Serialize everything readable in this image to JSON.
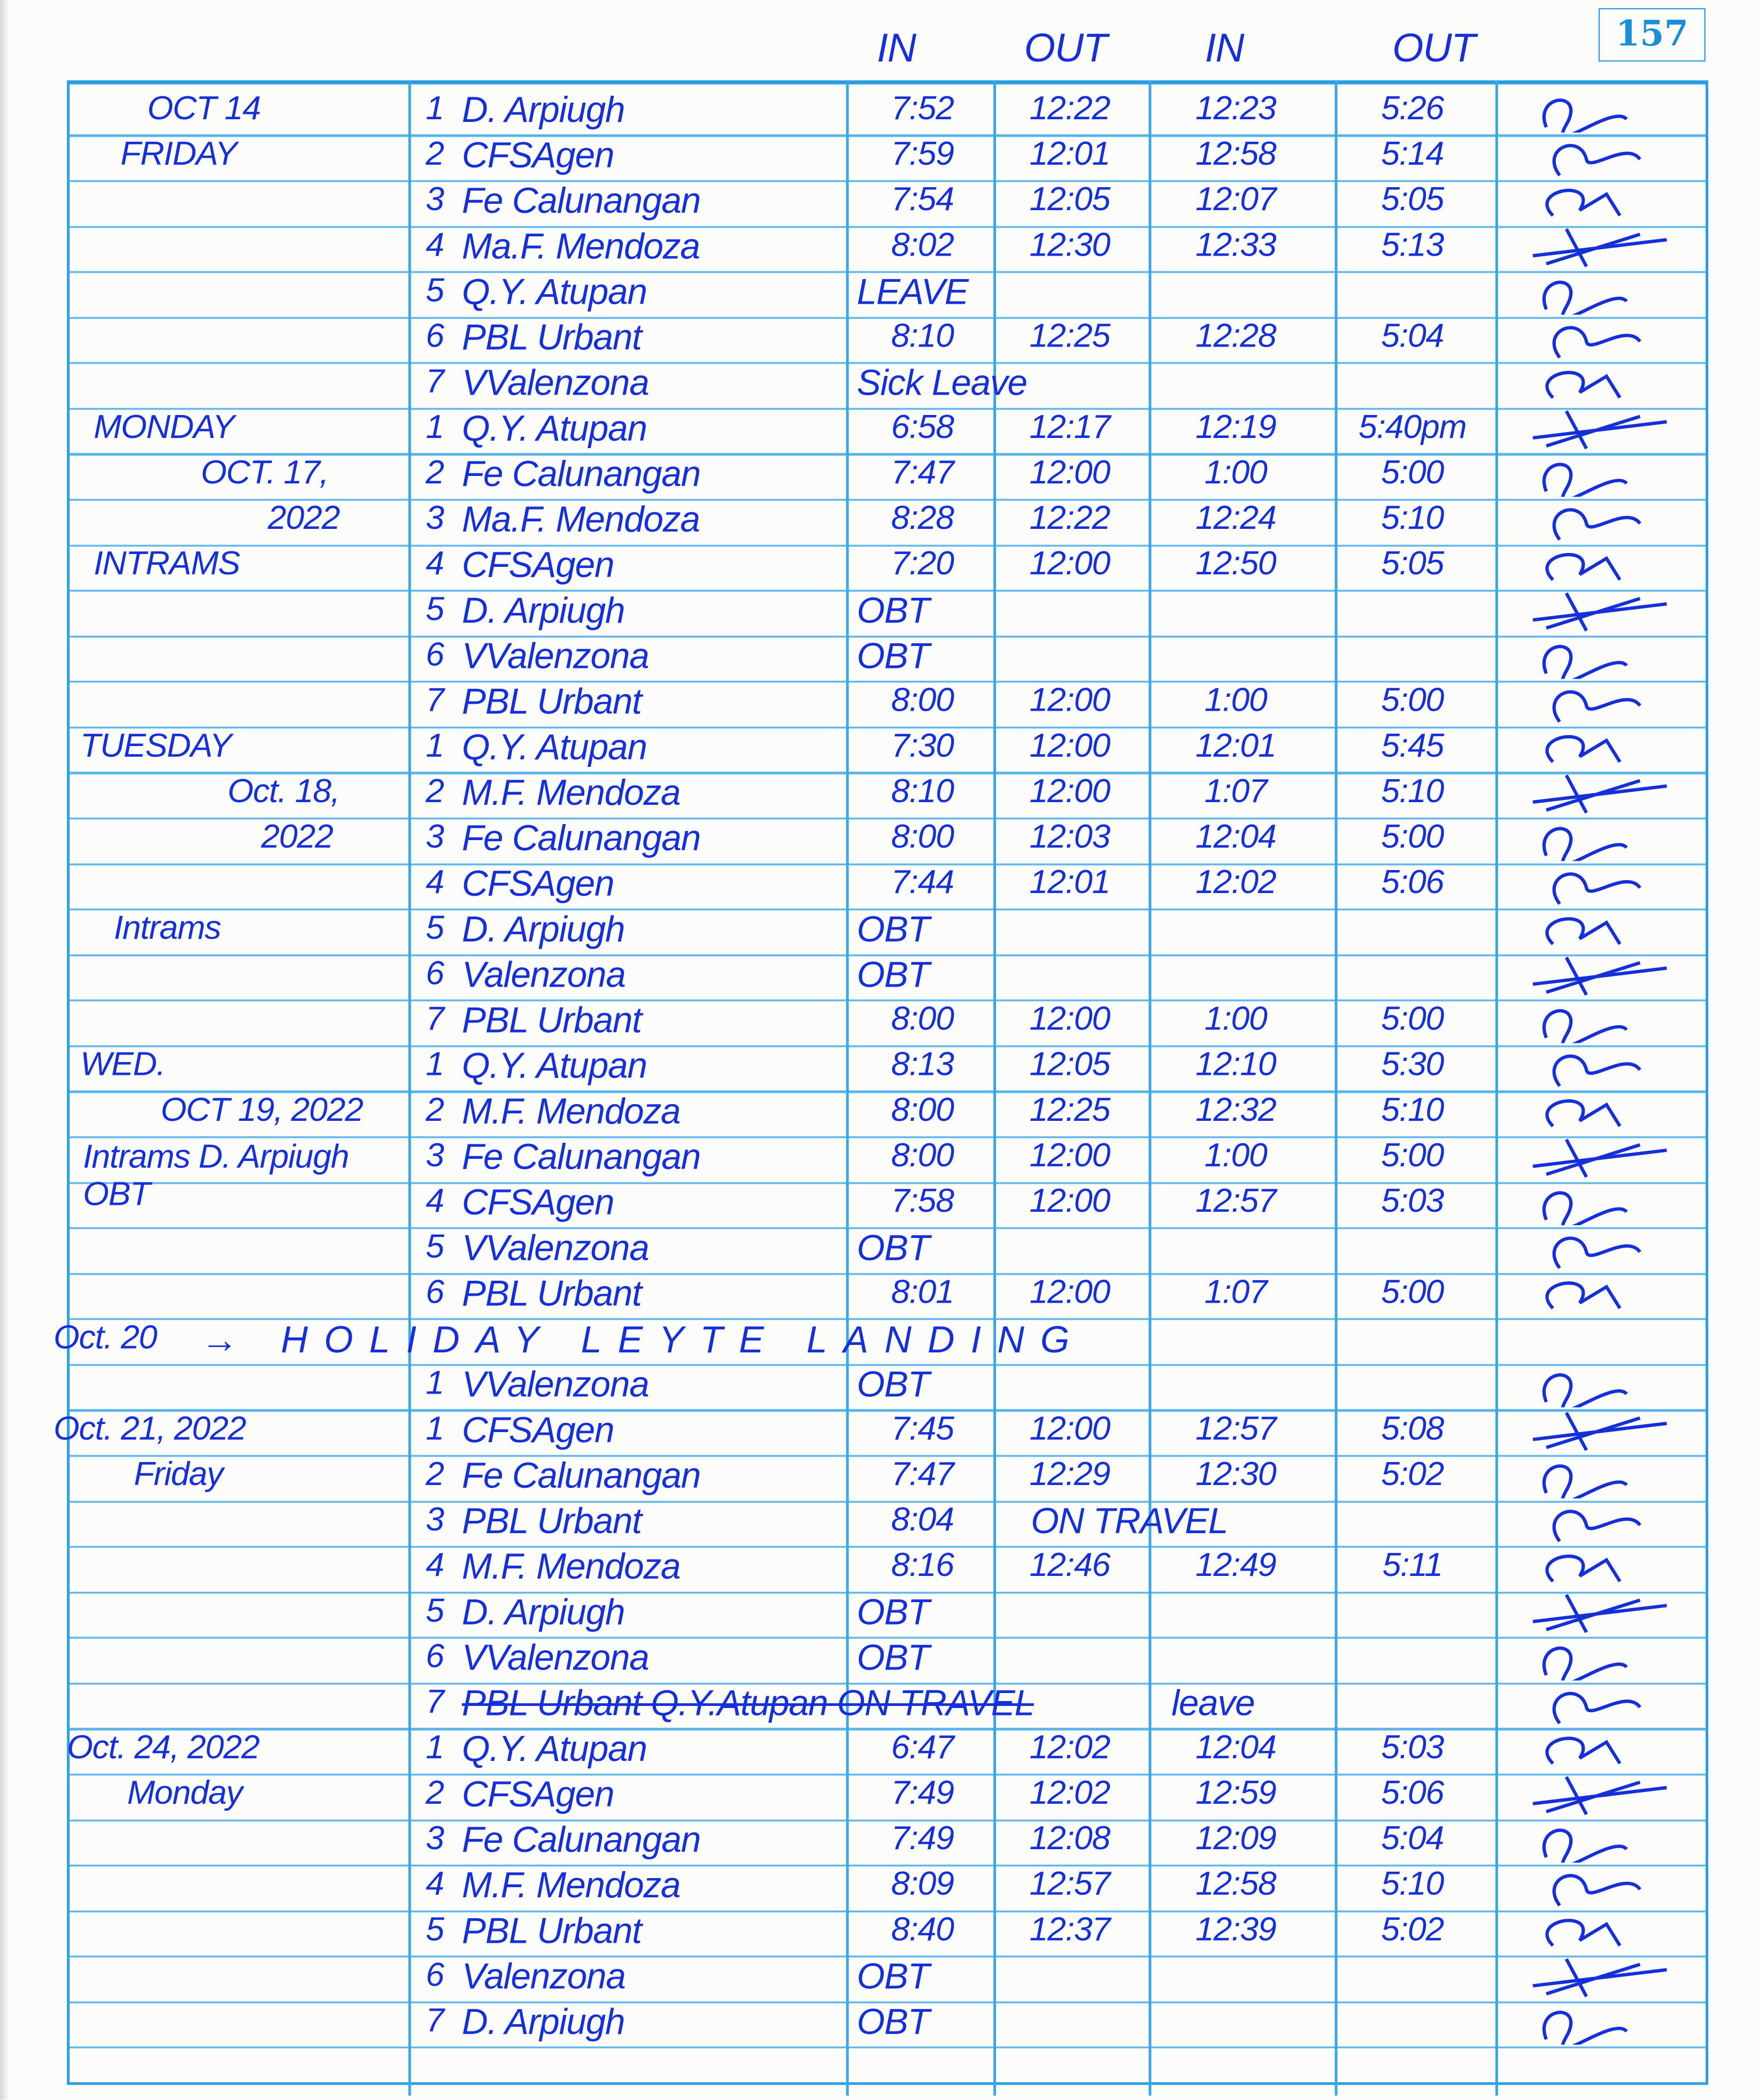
{
  "page_number": "157",
  "headers": {
    "in_am": "IN",
    "out_am": "OUT",
    "in_pm": "IN",
    "out_pm": "OUT"
  },
  "ink_color": "#1530d8",
  "rule_color": "#2a9ee0",
  "days": [
    {
      "date": "OCT 14",
      "weekday": "FRIDAY",
      "note": "",
      "entries": [
        {
          "no": "1",
          "name": "D. Arpiugh",
          "in1": "7:52",
          "out1": "12:22",
          "in2": "12:23",
          "out2": "5:26"
        },
        {
          "no": "2",
          "name": "CFSAgen",
          "in1": "7:59",
          "out1": "12:01",
          "in2": "12:58",
          "out2": "5:14"
        },
        {
          "no": "3",
          "name": "Fe Calunangan",
          "in1": "7:54",
          "out1": "12:05",
          "in2": "12:07",
          "out2": "5:05"
        },
        {
          "no": "4",
          "name": "Ma.F. Mendoza",
          "in1": "8:02",
          "out1": "12:30",
          "in2": "12:33",
          "out2": "5:13"
        },
        {
          "no": "5",
          "name": "Q.Y. Atupan",
          "status": "LEAVE"
        },
        {
          "no": "6",
          "name": "PBL Urbant",
          "in1": "8:10",
          "out1": "12:25",
          "in2": "12:28",
          "out2": "5:04"
        },
        {
          "no": "7",
          "name": "VValenzona",
          "status": "Sick Leave"
        }
      ]
    },
    {
      "date": "OCT. 17,",
      "year": "2022",
      "weekday": "MONDAY",
      "note": "INTRAMS",
      "entries": [
        {
          "no": "1",
          "name": "Q.Y. Atupan",
          "in1": "6:58",
          "out1": "12:17",
          "in2": "12:19",
          "out2": "5:40pm"
        },
        {
          "no": "2",
          "name": "Fe Calunangan",
          "in1": "7:47",
          "out1": "12:00",
          "in2": "1:00",
          "out2": "5:00"
        },
        {
          "no": "3",
          "name": "Ma.F. Mendoza",
          "in1": "8:28",
          "out1": "12:22",
          "in2": "12:24",
          "out2": "5:10"
        },
        {
          "no": "4",
          "name": "CFSAgen",
          "in1": "7:20",
          "out1": "12:00",
          "in2": "12:50",
          "out2": "5:05"
        },
        {
          "no": "5",
          "name": "D. Arpiugh",
          "status": "OBT"
        },
        {
          "no": "6",
          "name": "VValenzona",
          "status": "OBT"
        },
        {
          "no": "7",
          "name": "PBL Urbant",
          "in1": "8:00",
          "out1": "12:00",
          "in2": "1:00",
          "out2": "5:00"
        }
      ]
    },
    {
      "date": "Oct. 18,",
      "year": "2022",
      "weekday": "TUESDAY",
      "note": "Intrams",
      "entries": [
        {
          "no": "1",
          "name": "Q.Y. Atupan",
          "in1": "7:30",
          "out1": "12:00",
          "in2": "12:01",
          "out2": "5:45"
        },
        {
          "no": "2",
          "name": "M.F. Mendoza",
          "in1": "8:10",
          "out1": "12:00",
          "in2": "1:07",
          "out2": "5:10"
        },
        {
          "no": "3",
          "name": "Fe Calunangan",
          "in1": "8:00",
          "out1": "12:03",
          "in2": "12:04",
          "out2": "5:00"
        },
        {
          "no": "4",
          "name": "CFSAgen",
          "in1": "7:44",
          "out1": "12:01",
          "in2": "12:02",
          "out2": "5:06"
        },
        {
          "no": "5",
          "name": "D. Arpiugh",
          "status": "OBT"
        },
        {
          "no": "6",
          "name": "Valenzona",
          "status": "OBT"
        },
        {
          "no": "7",
          "name": "PBL Urbant",
          "in1": "8:00",
          "out1": "12:00",
          "in2": "1:00",
          "out2": "5:00"
        }
      ]
    },
    {
      "date": "OCT 19, 2022",
      "weekday": "WED.",
      "note": "Intrams D. Arpiugh OBT",
      "entries": [
        {
          "no": "1",
          "name": "Q.Y. Atupan",
          "in1": "8:13",
          "out1": "12:05",
          "in2": "12:10",
          "out2": "5:30"
        },
        {
          "no": "2",
          "name": "M.F. Mendoza",
          "in1": "8:00",
          "out1": "12:25",
          "in2": "12:32",
          "out2": "5:10"
        },
        {
          "no": "3",
          "name": "Fe Calunangan",
          "in1": "8:00",
          "out1": "12:00",
          "in2": "1:00",
          "out2": "5:00"
        },
        {
          "no": "4",
          "name": "CFSAgen",
          "in1": "7:58",
          "out1": "12:00",
          "in2": "12:57",
          "out2": "5:03"
        },
        {
          "no": "5",
          "name": "VValenzona",
          "status": "OBT"
        },
        {
          "no": "6",
          "name": "PBL Urbant",
          "in1": "8:01",
          "out1": "12:00",
          "in2": "1:07",
          "out2": "5:00"
        }
      ]
    },
    {
      "date": "Oct. 20",
      "holiday": "→ HOLIDAY LEYTE LANDING",
      "entries": [
        {
          "no": "1",
          "name": "VValenzona",
          "status": "OBT"
        }
      ]
    },
    {
      "date": "Oct. 21, 2022",
      "weekday": "Friday",
      "entries": [
        {
          "no": "1",
          "name": "CFSAgen",
          "in1": "7:45",
          "out1": "12:00",
          "in2": "12:57",
          "out2": "5:08"
        },
        {
          "no": "2",
          "name": "Fe Calunangan",
          "in1": "7:47",
          "out1": "12:29",
          "in2": "12:30",
          "out2": "5:02"
        },
        {
          "no": "3",
          "name": "PBL Urbant",
          "in1": "8:04",
          "status": "ON TRAVEL"
        },
        {
          "no": "4",
          "name": "M.F. Mendoza",
          "in1": "8:16",
          "out1": "12:46",
          "in2": "12:49",
          "out2": "5:11"
        },
        {
          "no": "5",
          "name": "D. Arpiugh",
          "status": "OBT"
        },
        {
          "no": "6",
          "name": "VValenzona",
          "status": "OBT"
        },
        {
          "no": "7",
          "name": "PBL Urbant Q.Y.Atupan ON TRAVEL",
          "struck": true,
          "status": "leave"
        }
      ]
    },
    {
      "date": "Oct. 24, 2022",
      "weekday": "Monday",
      "entries": [
        {
          "no": "1",
          "name": "Q.Y. Atupan",
          "in1": "6:47",
          "out1": "12:02",
          "in2": "12:04",
          "out2": "5:03"
        },
        {
          "no": "2",
          "name": "CFSAgen",
          "in1": "7:49",
          "out1": "12:02",
          "in2": "12:59",
          "out2": "5:06"
        },
        {
          "no": "3",
          "name": "Fe Calunangan",
          "in1": "7:49",
          "out1": "12:08",
          "in2": "12:09",
          "out2": "5:04"
        },
        {
          "no": "4",
          "name": "M.F. Mendoza",
          "in1": "8:09",
          "out1": "12:57",
          "in2": "12:58",
          "out2": "5:10"
        },
        {
          "no": "5",
          "name": "PBL Urbant",
          "in1": "8:40",
          "out1": "12:37",
          "in2": "12:39",
          "out2": "5:02"
        },
        {
          "no": "6",
          "name": "Valenzona",
          "status": "OBT"
        },
        {
          "no": "7",
          "name": "D. Arpiugh",
          "status": "OBT"
        }
      ]
    }
  ]
}
